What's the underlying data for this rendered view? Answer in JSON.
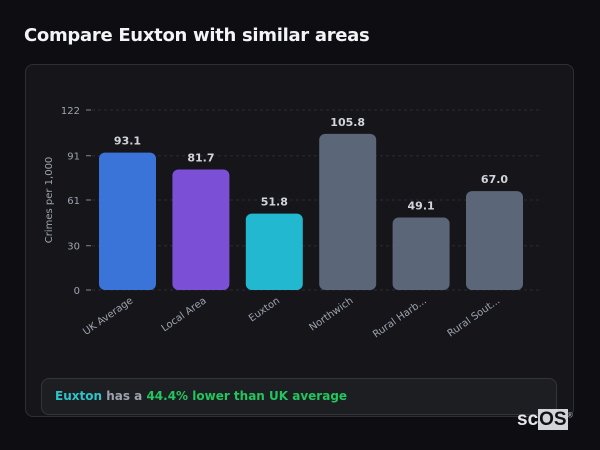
{
  "header": {
    "title": "Compare Euxton with similar areas"
  },
  "chart_data": {
    "type": "bar",
    "categories": [
      "UK Average",
      "Local Area",
      "Euxton",
      "Northwich",
      "Rural Harb...",
      "Rural Sout..."
    ],
    "values": [
      93.1,
      81.7,
      51.8,
      105.8,
      49.1,
      67.0
    ],
    "value_labels": [
      "93.1",
      "81.7",
      "51.8",
      "105.8",
      "49.1",
      "67.0"
    ],
    "colors": [
      "#3b74d9",
      "#7b4fd6",
      "#21b8d0",
      "#5b6678",
      "#5b6678",
      "#5b6678"
    ],
    "ylabel": "Crimes per 1,000",
    "xlabel": "",
    "yticks": [
      "0",
      "30",
      "61",
      "91",
      "122"
    ],
    "ylim": [
      0,
      122
    ],
    "grid": true,
    "legend": "none"
  },
  "summary": {
    "area": "Euxton",
    "middle": " has a ",
    "highlight": "44.4% lower than UK average"
  },
  "watermark": {
    "text_a": "sc",
    "text_b": "OS",
    "mark": "®"
  }
}
